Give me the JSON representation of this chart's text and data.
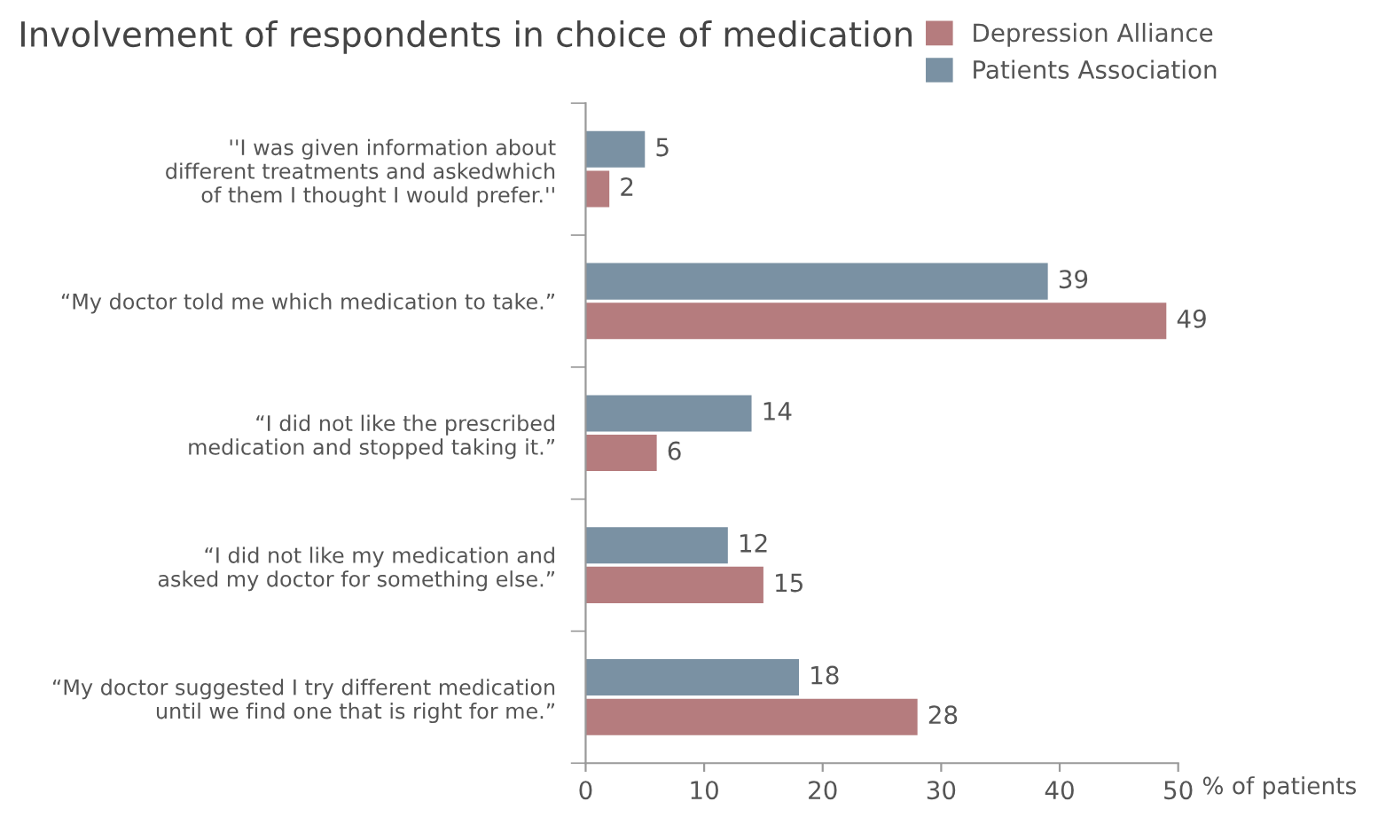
{
  "chart_data": {
    "type": "bar",
    "orientation": "horizontal",
    "title": "Involvement of respondents in choice of medication",
    "categories": [
      "''I was given information about\ndifferent treatments and askedwhich\nof them I thought I would prefer.''",
      "“My doctor told me which medication to take.”",
      "“I did not like the prescribed\nmedication and stopped taking it.”",
      "“I did not like my medication and\nasked my doctor for something else.”",
      "“My doctor suggested I try different medication\nuntil we find one that is right for me.”"
    ],
    "series": [
      {
        "name": "Depression Alliance",
        "color": "#b57c7e",
        "values": [
          2,
          49,
          6,
          15,
          28
        ]
      },
      {
        "name": "Patients Association",
        "color": "#7a91a3",
        "values": [
          5,
          39,
          14,
          12,
          18
        ]
      }
    ],
    "xlabel": "% of patients",
    "xlim": [
      0,
      50
    ],
    "xticks": [
      0,
      10,
      20,
      30,
      40,
      50
    ],
    "data_labels": true,
    "grid": false,
    "legend": "top right"
  }
}
